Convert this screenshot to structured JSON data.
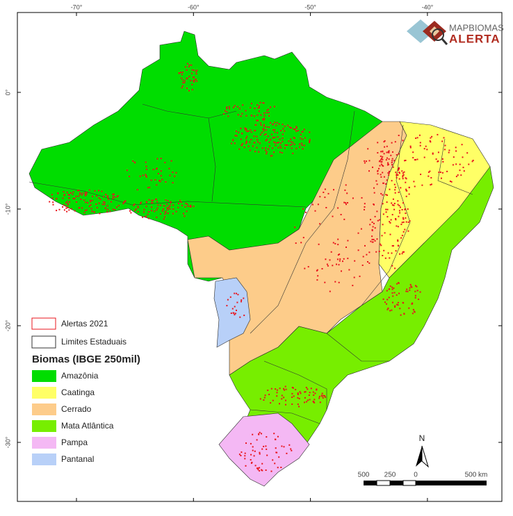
{
  "logo": {
    "brand": "MAPBIOMAS",
    "product": "ALERTA"
  },
  "map": {
    "lon_labels": [
      "-70°",
      "-60°",
      "-50°",
      "-40°"
    ],
    "lat_labels": [
      "0°",
      "-10°",
      "-20°",
      "-30°"
    ],
    "alert_color": "#e8141c"
  },
  "legend": {
    "alerts": "Alertas 2021",
    "states": "Limites Estaduais",
    "title": "Biomas (IBGE 250mil)",
    "biomes": [
      {
        "name": "Amazônia",
        "color": "#00dd00"
      },
      {
        "name": "Caatinga",
        "color": "#ffff66"
      },
      {
        "name": "Cerrado",
        "color": "#fdcc8a"
      },
      {
        "name": "Mata Atlântica",
        "color": "#77ee00"
      },
      {
        "name": "Pampa",
        "color": "#f4b8f4"
      },
      {
        "name": "Pantanal",
        "color": "#b8d0f8"
      }
    ]
  },
  "scale_bar": {
    "labels": [
      "500",
      "250",
      "0",
      "500 km"
    ]
  },
  "north": "N"
}
